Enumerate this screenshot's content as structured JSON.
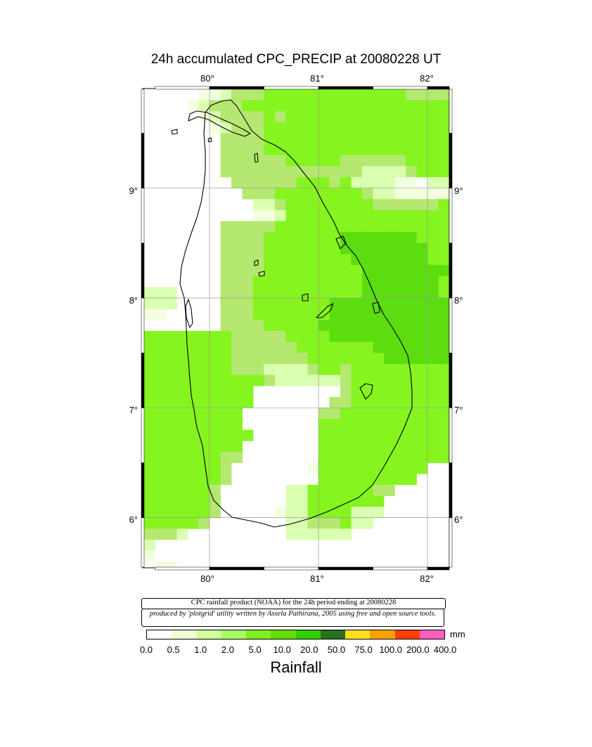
{
  "title": "24h accumulated CPC_PRECIP  at 20080228 UT",
  "axes": {
    "lon_ticks": [
      "80°",
      "81°",
      "82°"
    ],
    "lat_ticks": [
      "9°",
      "8°",
      "7°",
      "6°"
    ],
    "lon_range": [
      79.4,
      82.2
    ],
    "lat_range": [
      5.55,
      9.9
    ]
  },
  "map": {
    "land_outline_color": "#000000",
    "grid_color": "#999999"
  },
  "rain_grid": {
    "lon0": 79.45,
    "lat0": 9.85,
    "cell_deg": 0.1,
    "cols": 28,
    "rows_data": [
      "0000011233344444444444443333",
      "0000123334444444444444444444",
      "0000012333343444444444444444",
      "0000001233344444444444444444",
      "0000000333344444444444444444",
      "0000000333344444444444444444",
      "0000000333333444443333334444",
      "0000000333333333333322223444",
      "0000000033333344434222211022",
      "0000000003334444444432211111",
      "0000000000223444444443333334",
      "0000000000112444444444444444",
      "0000000333334444444444444444",
      "0000000333344444445555555444",
      "0000000333344444445555555544",
      "0000000333344444444555555544",
      "0000000333344444444455555555",
      "0000000333444444444455555554",
      "2220000333444444444455555554",
      "2220000333444444455555555555",
      "1100000333444444455555555555",
      "0000000333344444555555555555",
      "4444444433333444455555555555",
      "4444444433333344444445555555",
      "4444444433333334444444555555",
      "4444444433322223443444444444",
      "4444444444432222223444444444",
      "4444444444000000003444444444",
      "4444444444000000033444444444",
      "4444444440000000334444444444",
      "4444444440000000444444444444",
      "4444444444000000444444444444",
      "4444444440000000444444444444",
      "4444444330000000444444444444",
      "4444444300000001444444444400",
      "4444444300000000444444444000",
      "4444443000000224444443300000",
      "4444443000000224444444000000",
      "4444443000001224444222000000",
      "4444430000000223334220000000",
      "3332000000000222222000000000",
      "2000000000000000000000000000",
      "1000000000000000000000000000",
      "0110000000000000000000000000",
      "0000000000000000000000000000"
    ],
    "palette": [
      "#ffffff",
      "#f2ffdf",
      "#daffb0",
      "#b4e870",
      "#86f41e",
      "#5cdd10"
    ]
  },
  "notes": {
    "line1": "CPC rainfall product (NOAA) for the 24h period ending at 20080228",
    "line2": "produced by 'plotgrid' utility written by Assela Pathirana, 2005 using free and open source tools."
  },
  "legend": {
    "unit": "mm",
    "title": "Rainfall",
    "ticks": [
      "0.0",
      "0.5",
      "1.0",
      "2.0",
      "5.0",
      "10.0",
      "20.0",
      "50.0",
      "75.0",
      "100.0",
      "200.0",
      "400.0"
    ],
    "colors": [
      "#ffffff",
      "#f0ffd0",
      "#d0ff9a",
      "#a8ff60",
      "#7cf020",
      "#60e000",
      "#30d000",
      "#2a6e20",
      "#ffe020",
      "#ffa000",
      "#ff4000",
      "#ff60c0"
    ]
  }
}
